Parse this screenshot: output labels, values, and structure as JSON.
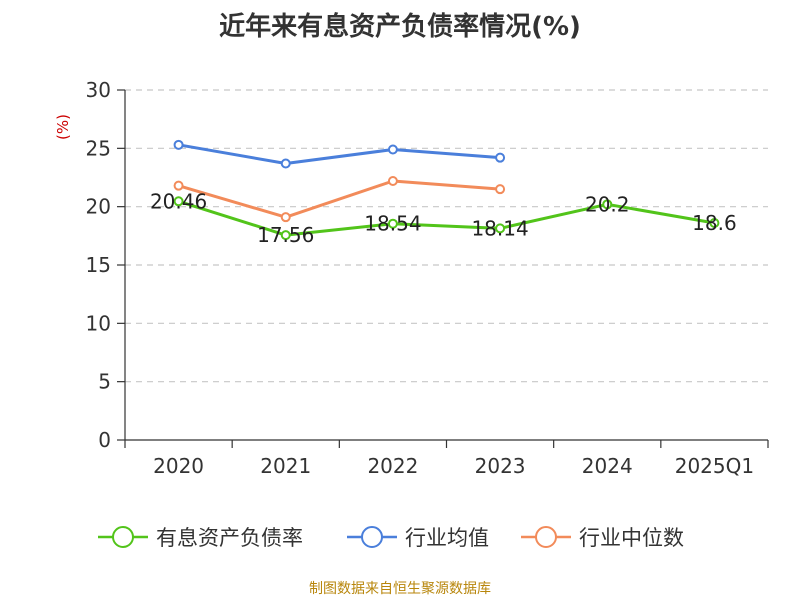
{
  "title": "近年来有息资产负债率情况(%)",
  "source": "制图数据来自恒生聚源数据库",
  "chart_data": {
    "type": "line",
    "title": "近年来有息资产负债率情况(%)",
    "ylabel": "(%)",
    "xlabel": "",
    "categories": [
      "2020",
      "2021",
      "2022",
      "2023",
      "2024",
      "2025Q1"
    ],
    "ylim": [
      0,
      30
    ],
    "yticks": [
      0,
      5,
      10,
      15,
      20,
      25,
      30
    ],
    "grid": true,
    "legend_position": "bottom",
    "series": [
      {
        "name": "有息资产负债率",
        "color": "#52c41a",
        "values": [
          20.46,
          17.56,
          18.54,
          18.14,
          20.2,
          18.6
        ],
        "labels": [
          "20.46",
          "17.56",
          "18.54",
          "18.14",
          "20.2",
          "18.6"
        ]
      },
      {
        "name": "行业均值",
        "color": "#4a7fdb",
        "values": [
          25.3,
          23.7,
          24.9,
          24.2,
          null,
          null
        ]
      },
      {
        "name": "行业中位数",
        "color": "#f28b5a",
        "values": [
          21.8,
          19.1,
          22.2,
          21.5,
          null,
          null
        ]
      }
    ]
  }
}
